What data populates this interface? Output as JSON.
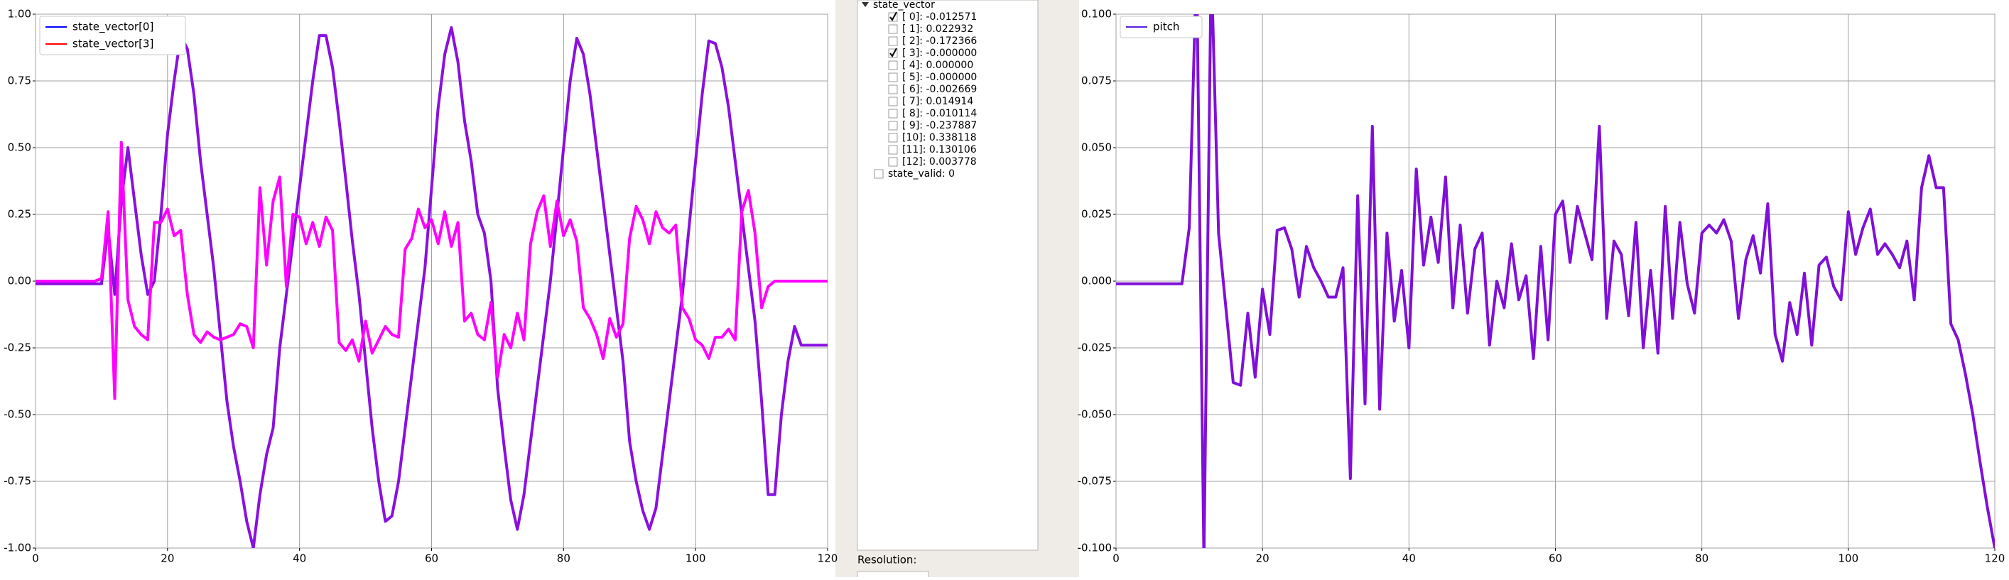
{
  "chart_data": [
    {
      "type": "line",
      "x": [
        0,
        1,
        2,
        3,
        4,
        5,
        6,
        7,
        8,
        9,
        10,
        11,
        12,
        13,
        14,
        15,
        16,
        17,
        18,
        19,
        20,
        21,
        22,
        23,
        24,
        25,
        26,
        27,
        28,
        29,
        30,
        31,
        32,
        33,
        34,
        35,
        36,
        37,
        38,
        39,
        40,
        41,
        42,
        43,
        44,
        45,
        46,
        47,
        48,
        49,
        50,
        51,
        52,
        53,
        54,
        55,
        56,
        57,
        58,
        59,
        60,
        61,
        62,
        63,
        64,
        65,
        66,
        67,
        68,
        69,
        70,
        71,
        72,
        73,
        74,
        75,
        76,
        77,
        78,
        79,
        80,
        81,
        82,
        83,
        84,
        85,
        86,
        87,
        88,
        89,
        90,
        91,
        92,
        93,
        94,
        95,
        96,
        97,
        98,
        99,
        100,
        101,
        102,
        103,
        104,
        105,
        106,
        107,
        108,
        109,
        110,
        111,
        112,
        113,
        114,
        115,
        116,
        117,
        118,
        119,
        120
      ],
      "series": [
        {
          "name": "state_vector[0]",
          "color": "#8a10e0",
          "legend_color": "#0000ff",
          "values": [
            -0.01,
            -0.01,
            -0.01,
            -0.01,
            -0.01,
            -0.01,
            -0.01,
            -0.01,
            -0.01,
            -0.01,
            -0.01,
            0.2,
            -0.05,
            0.3,
            0.5,
            0.3,
            0.1,
            -0.05,
            0.0,
            0.25,
            0.55,
            0.75,
            0.92,
            0.87,
            0.7,
            0.45,
            0.25,
            0.05,
            -0.2,
            -0.45,
            -0.62,
            -0.75,
            -0.9,
            -1.0,
            -0.8,
            -0.65,
            -0.55,
            -0.25,
            -0.05,
            0.15,
            0.35,
            0.55,
            0.75,
            0.92,
            0.92,
            0.8,
            0.6,
            0.38,
            0.15,
            -0.05,
            -0.3,
            -0.55,
            -0.75,
            -0.9,
            -0.88,
            -0.75,
            -0.55,
            -0.35,
            -0.15,
            0.05,
            0.35,
            0.65,
            0.85,
            0.95,
            0.82,
            0.6,
            0.45,
            0.25,
            0.18,
            0.0,
            -0.4,
            -0.62,
            -0.82,
            -0.93,
            -0.8,
            -0.6,
            -0.4,
            -0.2,
            0.0,
            0.25,
            0.5,
            0.75,
            0.91,
            0.85,
            0.7,
            0.5,
            0.3,
            0.1,
            -0.1,
            -0.3,
            -0.6,
            -0.75,
            -0.86,
            -0.93,
            -0.85,
            -0.65,
            -0.45,
            -0.25,
            -0.05,
            0.2,
            0.45,
            0.7,
            0.9,
            0.89,
            0.8,
            0.65,
            0.45,
            0.25,
            0.05,
            -0.15,
            -0.45,
            -0.8,
            -0.8,
            -0.5,
            -0.3,
            -0.17,
            -0.24,
            -0.24,
            -0.24,
            -0.24,
            -0.24
          ]
        },
        {
          "name": "state_vector[3]",
          "color": "#ff00ff",
          "legend_color": "#ff0000",
          "values": [
            0.0,
            0.0,
            0.0,
            0.0,
            0.0,
            0.0,
            0.0,
            0.0,
            0.0,
            0.0,
            0.01,
            0.26,
            -0.44,
            0.52,
            -0.07,
            -0.17,
            -0.2,
            -0.22,
            0.22,
            0.22,
            0.27,
            0.17,
            0.19,
            -0.05,
            -0.2,
            -0.23,
            -0.19,
            -0.21,
            -0.22,
            -0.21,
            -0.2,
            -0.16,
            -0.17,
            -0.25,
            0.35,
            0.06,
            0.3,
            0.39,
            -0.02,
            0.25,
            0.24,
            0.14,
            0.22,
            0.13,
            0.24,
            0.19,
            -0.23,
            -0.26,
            -0.22,
            -0.3,
            -0.15,
            -0.27,
            -0.22,
            -0.17,
            -0.2,
            -0.21,
            0.12,
            0.16,
            0.27,
            0.2,
            0.23,
            0.14,
            0.26,
            0.13,
            0.22,
            -0.15,
            -0.12,
            -0.2,
            -0.22,
            -0.08,
            -0.36,
            -0.2,
            -0.25,
            -0.12,
            -0.22,
            0.14,
            0.26,
            0.32,
            0.13,
            0.3,
            0.17,
            0.23,
            0.15,
            -0.1,
            -0.14,
            -0.2,
            -0.29,
            -0.14,
            -0.21,
            -0.16,
            0.16,
            0.28,
            0.23,
            0.14,
            0.26,
            0.2,
            0.18,
            0.21,
            -0.1,
            -0.14,
            -0.22,
            -0.24,
            -0.29,
            -0.21,
            -0.21,
            -0.18,
            -0.22,
            0.26,
            0.34,
            0.18,
            -0.1,
            -0.02,
            0.0,
            0.0,
            0.0,
            0.0,
            0.0,
            0.0,
            0.0,
            0.0,
            0.0
          ]
        }
      ],
      "xlim": [
        0,
        120
      ],
      "xticks": [
        0,
        20,
        40,
        60,
        80,
        100,
        120
      ],
      "ylim": [
        -1,
        1
      ],
      "yticks": [
        {
          "value": -1,
          "label": "-1.00"
        },
        {
          "value": -0.75,
          "label": "-0.75"
        },
        {
          "value": -0.5,
          "label": "-0.50"
        },
        {
          "value": -0.25,
          "label": "-0.25"
        },
        {
          "value": 0,
          "label": "0.00"
        },
        {
          "value": 0.25,
          "label": "0.25"
        },
        {
          "value": 0.5,
          "label": "0.50"
        },
        {
          "value": 0.75,
          "label": "0.75"
        },
        {
          "value": 1,
          "label": "1.00"
        }
      ],
      "grid": true,
      "legend": "upper left"
    },
    {
      "type": "line",
      "x": [
        0,
        1,
        2,
        3,
        4,
        5,
        6,
        7,
        8,
        9,
        10,
        11,
        12,
        13,
        14,
        15,
        16,
        17,
        18,
        19,
        20,
        21,
        22,
        23,
        24,
        25,
        26,
        27,
        28,
        29,
        30,
        31,
        32,
        33,
        34,
        35,
        36,
        37,
        38,
        39,
        40,
        41,
        42,
        43,
        44,
        45,
        46,
        47,
        48,
        49,
        50,
        51,
        52,
        53,
        54,
        55,
        56,
        57,
        58,
        59,
        60,
        61,
        62,
        63,
        64,
        65,
        66,
        67,
        68,
        69,
        70,
        71,
        72,
        73,
        74,
        75,
        76,
        77,
        78,
        79,
        80,
        81,
        82,
        83,
        84,
        85,
        86,
        87,
        88,
        89,
        90,
        91,
        92,
        93,
        94,
        95,
        96,
        97,
        98,
        99,
        100,
        101,
        102,
        103,
        104,
        105,
        106,
        107,
        108,
        109,
        110,
        111,
        112,
        113,
        114,
        115,
        116,
        117,
        118,
        119,
        120
      ],
      "series": [
        {
          "name": "pitch",
          "color": "#7f10d8",
          "legend_color": "#5a20e0",
          "values": [
            -0.001,
            -0.001,
            -0.001,
            -0.001,
            -0.001,
            -0.001,
            -0.001,
            -0.001,
            -0.001,
            -0.001,
            0.02,
            0.12,
            -0.105,
            0.12,
            0.018,
            -0.01,
            -0.038,
            -0.039,
            -0.012,
            -0.036,
            -0.003,
            -0.02,
            0.019,
            0.02,
            0.012,
            -0.006,
            0.013,
            0.005,
            0.0,
            -0.006,
            -0.006,
            0.005,
            -0.074,
            0.032,
            -0.046,
            0.058,
            -0.048,
            0.018,
            -0.015,
            0.004,
            -0.025,
            0.042,
            0.006,
            0.024,
            0.007,
            0.039,
            -0.01,
            0.021,
            -0.012,
            0.012,
            0.018,
            -0.024,
            0.0,
            -0.01,
            0.014,
            -0.007,
            0.002,
            -0.029,
            0.013,
            -0.022,
            0.025,
            0.03,
            0.007,
            0.028,
            0.018,
            0.008,
            0.058,
            -0.014,
            0.015,
            0.01,
            -0.013,
            0.022,
            -0.025,
            0.004,
            -0.027,
            0.028,
            -0.014,
            0.022,
            -0.001,
            -0.012,
            0.018,
            0.021,
            0.018,
            0.023,
            0.015,
            -0.014,
            0.008,
            0.017,
            0.003,
            0.029,
            -0.02,
            -0.03,
            -0.008,
            -0.02,
            0.003,
            -0.024,
            0.006,
            0.009,
            -0.002,
            -0.007,
            0.026,
            0.01,
            0.02,
            0.027,
            0.01,
            0.014,
            0.01,
            0.005,
            0.015,
            -0.007,
            0.035,
            0.047,
            0.035,
            0.035,
            -0.016,
            -0.022,
            -0.035,
            -0.05,
            -0.068,
            -0.085,
            -0.1
          ]
        }
      ],
      "xlim": [
        0,
        120
      ],
      "xticks": [
        0,
        20,
        40,
        60,
        80,
        100,
        120
      ],
      "ylim": [
        -0.1,
        0.1
      ],
      "yticks": [
        {
          "value": -0.1,
          "label": "-0.100"
        },
        {
          "value": -0.075,
          "label": "-0.075"
        },
        {
          "value": -0.05,
          "label": "-0.050"
        },
        {
          "value": -0.025,
          "label": "-0.025"
        },
        {
          "value": 0,
          "label": "0.000"
        },
        {
          "value": 0.025,
          "label": "0.025"
        },
        {
          "value": 0.05,
          "label": "0.050"
        },
        {
          "value": 0.075,
          "label": "0.075"
        },
        {
          "value": 0.1,
          "label": "0.100"
        }
      ],
      "grid": true,
      "legend": "upper left"
    }
  ],
  "tree": {
    "root": "state_vector",
    "items": [
      {
        "label": "[ 0]: -0.012571",
        "checked": true
      },
      {
        "label": "[ 1]: 0.022932",
        "checked": false
      },
      {
        "label": "[ 2]: -0.172366",
        "checked": false
      },
      {
        "label": "[ 3]: -0.000000",
        "checked": true
      },
      {
        "label": "[ 4]: 0.000000",
        "checked": false
      },
      {
        "label": "[ 5]: -0.000000",
        "checked": false
      },
      {
        "label": "[ 6]: -0.002669",
        "checked": false
      },
      {
        "label": "[ 7]: 0.014914",
        "checked": false
      },
      {
        "label": "[ 8]: -0.010114",
        "checked": false
      },
      {
        "label": "[ 9]: -0.237887",
        "checked": false
      },
      {
        "label": "[10]: 0.338118",
        "checked": false
      },
      {
        "label": "[11]: 0.130106",
        "checked": false
      },
      {
        "label": "[12]: 0.003778",
        "checked": false
      }
    ],
    "extra": {
      "label": "state_valid: 0",
      "checked": false
    }
  },
  "resolution_label": "Resolution:"
}
